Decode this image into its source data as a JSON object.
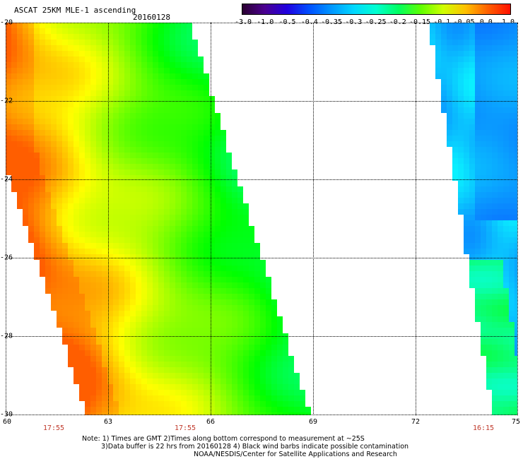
{
  "header": {
    "title": "ASCAT 25KM MLE-1 ascending",
    "date": "20160128"
  },
  "colorbar": {
    "tick_labels": [
      "-3.0",
      "-1.0",
      "-0.5",
      "-0.4",
      "-0.35",
      "-0.3",
      "-0.25",
      "-0.2",
      "-0.15",
      "-0.1",
      "-0.05",
      "0.0",
      "1.0"
    ],
    "colors": [
      "#2a0030",
      "#4b0090",
      "#2000e0",
      "#0050ff",
      "#0098ff",
      "#00d8ff",
      "#00ffd0",
      "#00ff60",
      "#60ff00",
      "#d0ff00",
      "#ffc000",
      "#ff6000",
      "#ff1000"
    ]
  },
  "map": {
    "lat_labels": [
      "-20",
      "-22",
      "-24",
      "-26",
      "-28",
      "-30"
    ],
    "lon_labels": [
      "60",
      "63",
      "66",
      "69",
      "72",
      "75"
    ],
    "time_labels": [
      "17:55",
      "17:55",
      "16:15"
    ]
  },
  "notes": {
    "line1": "Note: 1) Times are GMT 2)Times along bottom correspond to measurement at ~25S",
    "line2": "3)Data buffer is 22 hrs from 20160128 4) Black wind barbs indicate possible contamination",
    "line3": "NOAA/NESDIS/Center for Satellite Applications and Research"
  }
}
